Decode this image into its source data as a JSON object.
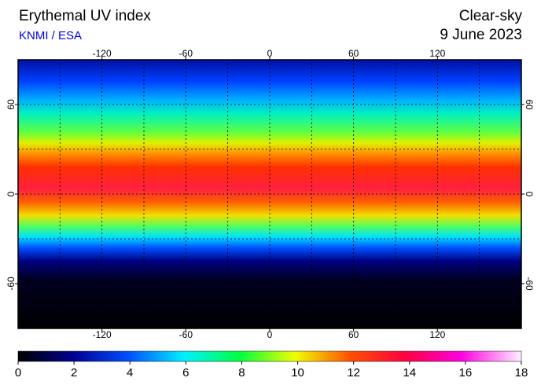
{
  "header": {
    "title": "Erythemal UV index",
    "credit": "KNMI / ESA",
    "condition": "Clear-sky",
    "date": "9 June 2023"
  },
  "map": {
    "lon_range": [
      -180,
      180
    ],
    "lat_range": [
      -90,
      90
    ],
    "lon_ticks": [
      -120,
      -60,
      0,
      60,
      120
    ],
    "lat_ticks": [
      60,
      0,
      -60
    ],
    "grid_step": 30,
    "grid": true
  },
  "colorbar": {
    "range": [
      0,
      18
    ],
    "ticks": [
      0,
      2,
      4,
      6,
      8,
      10,
      12,
      14,
      16,
      18
    ]
  }
}
